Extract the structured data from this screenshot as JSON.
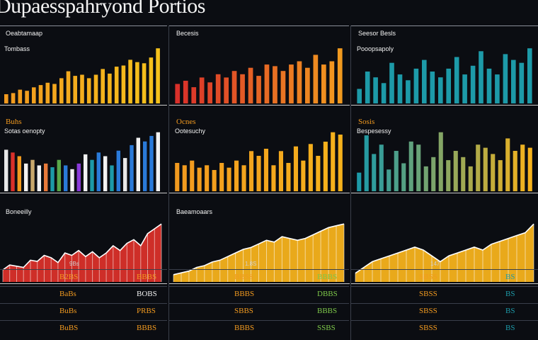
{
  "page": {
    "title": "Dupaesspahryond Portios"
  },
  "colors": {
    "orange": "#f29a1f",
    "amber": "#f5b21c",
    "rust": "#e0642a",
    "teal": "#1d9aa8",
    "red": "#d9302a",
    "white": "#f2f2f2"
  },
  "columns": [
    {
      "panels": [
        {
          "label": "Oeabtamaap",
          "sublabel": "Tombass",
          "label_color": "#f2f2f2",
          "label_hi": "",
          "sublabel_color": "#f2f2f2"
        },
        {
          "label": "Buhs",
          "sublabel": "Sotas oenopty",
          "label_color": "#f29a1f",
          "label_hi": "true",
          "sublabel_color": "#f2f2f2"
        },
        {
          "label": "Boneeilly",
          "sublabel": "",
          "label_color": "#f2f2f2",
          "label_hi": "",
          "sublabel_color": "#f2f2f2"
        }
      ],
      "tick": "9Bs",
      "summary": [
        {
          "a": "B2BS",
          "b": "BBBS",
          "ca": "#f29a1f",
          "cb": "#f29a1f"
        },
        {
          "a": "BaBs",
          "b": "BOBS",
          "ca": "#f29a1f",
          "cb": "#f2f2f2"
        },
        {
          "a": "BuBs",
          "b": "PRBS",
          "ca": "#f29a1f",
          "cb": "#f29a1f"
        },
        {
          "a": "BuBS",
          "b": "BBBS",
          "ca": "#f29a1f",
          "cb": "#f29a1f"
        }
      ]
    },
    {
      "panels": [
        {
          "label": "Becesis",
          "sublabel": "",
          "label_color": "#f2f2f2",
          "label_hi": "",
          "sublabel_color": "#f2f2f2"
        },
        {
          "label": "Ocnes",
          "sublabel": "Ootesuchy",
          "label_color": "#f29a1f",
          "label_hi": "true",
          "sublabel_color": "#f2f2f2"
        },
        {
          "label": "Baeamoaars",
          "sublabel": "",
          "label_color": "#f2f2f2",
          "label_hi": "",
          "sublabel_color": "#f2f2f2"
        }
      ],
      "tick": "1.8S",
      "summary": [
        {
          "a": "BBSS",
          "b": "BBBS",
          "ca": "#f29a1f",
          "cb": "#7ec84a"
        },
        {
          "a": "BBBS",
          "b": "DBBS",
          "ca": "#f29a1f",
          "cb": "#7ec84a"
        },
        {
          "a": "SBBS",
          "b": "BBBS",
          "ca": "#f29a1f",
          "cb": "#7ec84a"
        },
        {
          "a": "BBBS",
          "b": "SSBS",
          "ca": "#f29a1f",
          "cb": "#7ec84a"
        }
      ]
    },
    {
      "panels": [
        {
          "label": "Seesor Besls",
          "sublabel": "Pooopsapoly",
          "label_color": "#f2f2f2",
          "label_hi": "",
          "sublabel_color": "#f2f2f2"
        },
        {
          "label": "Sosis",
          "sublabel": "Bespesessy",
          "label_color": "#f29a1f",
          "label_hi": "true",
          "sublabel_color": "#f2f2f2"
        },
        {
          "label": "",
          "sublabel": "",
          "label_color": "#f2f2f2",
          "label_hi": "",
          "sublabel_color": "#f2f2f2"
        }
      ],
      "tick": "147",
      "summary": [
        {
          "a": "SBSS",
          "b": "BS",
          "ca": "#f29a1f",
          "cb": "#1d9aa8"
        },
        {
          "a": "SBSS",
          "b": "BS",
          "ca": "#f29a1f",
          "cb": "#1d9aa8"
        },
        {
          "a": "SBSS",
          "b": "BS",
          "ca": "#f29a1f",
          "cb": "#1d9aa8"
        },
        {
          "a": "SBSS",
          "b": "BS",
          "ca": "#f29a1f",
          "cb": "#1d9aa8"
        }
      ]
    }
  ],
  "chart_data": [
    {
      "type": "bar",
      "values": [
        8,
        9,
        12,
        11,
        14,
        16,
        18,
        17,
        22,
        28,
        24,
        25,
        22,
        25,
        30,
        26,
        32,
        33,
        38,
        36,
        35,
        40,
        48
      ],
      "gradient": [
        "#f29a1f",
        "#f5c21c"
      ]
    },
    {
      "type": "bar",
      "values": [
        45,
        42,
        38,
        30,
        34,
        28,
        30,
        26,
        34,
        28,
        24,
        30,
        40,
        34,
        42,
        38,
        28,
        44,
        36,
        50,
        58,
        54,
        60,
        64
      ],
      "multicolor": [
        "#e8e8e8",
        "#d9302a",
        "#f29a1f",
        "#f2f2f2",
        "#c8a86c",
        "#f2f2f2",
        "#e87a3a",
        "#1d9aa8",
        "#5aa84a",
        "#2a7ad9",
        "#f2f2f2",
        "#8a3ad9",
        "#f2f2f2",
        "#1d9aa8",
        "#2a7ad9",
        "#f2f2f2",
        "#1d9aa8",
        "#2a7ad9",
        "#e8e8e8",
        "#2a7ad9",
        "#f2f2f2",
        "#2a7ad9",
        "#2a7ad9",
        "#f2f2f2"
      ]
    },
    {
      "type": "area",
      "values": [
        10,
        14,
        13,
        12,
        18,
        17,
        22,
        20,
        16,
        24,
        22,
        26,
        21,
        25,
        20,
        24,
        30,
        26,
        32,
        35,
        30,
        40,
        44,
        48
      ],
      "color": "#d9302a"
    },
    {
      "type": "bar",
      "values": [
        12,
        14,
        10,
        16,
        13,
        18,
        16,
        20,
        18,
        22,
        17,
        24,
        23,
        20,
        24,
        26,
        22,
        30,
        24,
        26,
        34
      ],
      "gradient": [
        "#d9302a",
        "#f29a1f"
      ]
    },
    {
      "type": "bar",
      "values": [
        24,
        22,
        26,
        20,
        22,
        18,
        24,
        20,
        26,
        22,
        34,
        30,
        36,
        22,
        34,
        24,
        38,
        26,
        40,
        30,
        42,
        50,
        48
      ],
      "gradient": [
        "#f29a1f",
        "#f5b21c"
      ]
    },
    {
      "type": "area",
      "values": [
        8,
        10,
        12,
        16,
        18,
        22,
        24,
        28,
        32,
        36,
        38,
        42,
        46,
        44,
        50,
        48,
        46,
        48,
        52,
        56,
        60,
        62,
        64
      ],
      "color": "#f5b21c"
    },
    {
      "type": "bar",
      "values": [
        10,
        22,
        18,
        14,
        28,
        20,
        16,
        24,
        30,
        22,
        18,
        24,
        32,
        20,
        26,
        36,
        24,
        20,
        34,
        30,
        28,
        38
      ],
      "gradient": [
        "#1d9aa8",
        "#1d9aa8"
      ]
    },
    {
      "type": "bar",
      "values": [
        12,
        36,
        24,
        30,
        14,
        26,
        18,
        32,
        30,
        16,
        22,
        38,
        20,
        26,
        22,
        16,
        30,
        28,
        24,
        20,
        34,
        26,
        30,
        28
      ],
      "gradient": [
        "#1d9aa8",
        "#f5b21c"
      ]
    },
    {
      "type": "area",
      "values": [
        6,
        10,
        14,
        16,
        18,
        20,
        22,
        24,
        22,
        18,
        14,
        18,
        20,
        22,
        24,
        22,
        26,
        28,
        30,
        32,
        34,
        40
      ],
      "color": "#f5b21c"
    }
  ]
}
